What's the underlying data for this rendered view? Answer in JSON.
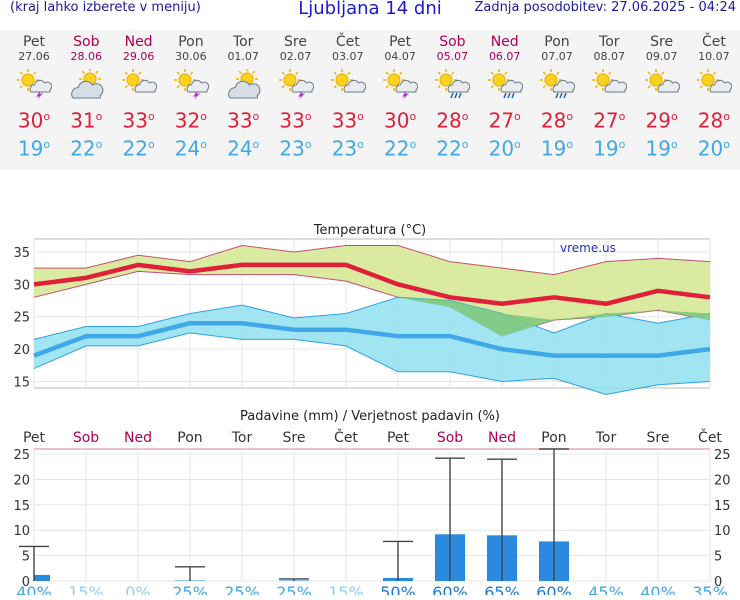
{
  "header": {
    "menu_hint": "(kraj lahko izberete v meniju)",
    "title": "Ljubljana 14 dni",
    "updated": "Zadnja posodobitev: 27.06.2025 - 04:24"
  },
  "days": [
    {
      "name": "Pet",
      "date": "27.06",
      "weekend": false,
      "icon": "sun-cloud-thunder-icon",
      "max": "30",
      "min": "19"
    },
    {
      "name": "Sob",
      "date": "28.06",
      "weekend": true,
      "icon": "cloud-sun-icon",
      "max": "31",
      "min": "22"
    },
    {
      "name": "Ned",
      "date": "29.06",
      "weekend": true,
      "icon": "sun-cloud-icon",
      "max": "33",
      "min": "22"
    },
    {
      "name": "Pon",
      "date": "30.06",
      "weekend": false,
      "icon": "sun-cloud-thunder-icon",
      "max": "32",
      "min": "24"
    },
    {
      "name": "Tor",
      "date": "01.07",
      "weekend": false,
      "icon": "cloud-sun-icon",
      "max": "33",
      "min": "24"
    },
    {
      "name": "Sre",
      "date": "02.07",
      "weekend": false,
      "icon": "sun-cloud-thunder-icon",
      "max": "33",
      "min": "23"
    },
    {
      "name": "Čet",
      "date": "03.07",
      "weekend": false,
      "icon": "sun-cloud-icon",
      "max": "33",
      "min": "23"
    },
    {
      "name": "Pet",
      "date": "04.07",
      "weekend": false,
      "icon": "sun-cloud-thunder-icon",
      "max": "30",
      "min": "22"
    },
    {
      "name": "Sob",
      "date": "05.07",
      "weekend": true,
      "icon": "sun-cloud-rain-icon",
      "max": "28",
      "min": "22"
    },
    {
      "name": "Ned",
      "date": "06.07",
      "weekend": true,
      "icon": "sun-cloud-rain-icon",
      "max": "27",
      "min": "20"
    },
    {
      "name": "Pon",
      "date": "07.07",
      "weekend": false,
      "icon": "sun-cloud-rain-icon",
      "max": "28",
      "min": "19"
    },
    {
      "name": "Tor",
      "date": "08.07",
      "weekend": false,
      "icon": "sun-cloud-icon",
      "max": "27",
      "min": "19"
    },
    {
      "name": "Sre",
      "date": "09.07",
      "weekend": false,
      "icon": "sun-cloud-icon",
      "max": "29",
      "min": "19"
    },
    {
      "name": "Čet",
      "date": "10.07",
      "weekend": false,
      "icon": "sun-cloud-icon",
      "max": "28",
      "min": "20"
    }
  ],
  "colors": {
    "max": "#e0203a",
    "min": "#40a8e8",
    "weekend": "#b00050",
    "max_band": "#d4e890",
    "min_band": "#90e0f0",
    "overlap": "#7cc878",
    "bar": "#2a8ae0"
  },
  "chart_data": [
    {
      "type": "line",
      "title": "Temperatura (°C)",
      "watermark": "vreme.us",
      "ylim": [
        14,
        37
      ],
      "yticks": [
        15,
        20,
        25,
        30,
        35
      ],
      "categories": [
        "Pet",
        "Sob",
        "Ned",
        "Pon",
        "Tor",
        "Sre",
        "Čet",
        "Pet",
        "Sob",
        "Ned",
        "Pon",
        "Tor",
        "Sre",
        "Čet"
      ],
      "series": [
        {
          "values": [
            30,
            31,
            33,
            32,
            33,
            33,
            33,
            30,
            28,
            27,
            28,
            27,
            29,
            28
          ]
        },
        {
          "values": [
            19,
            22,
            22,
            24,
            24,
            23,
            23,
            22,
            22,
            20,
            19,
            19,
            19,
            20
          ]
        }
      ],
      "max_band_upper": [
        32.5,
        32.5,
        34.5,
        33.5,
        36,
        35,
        36,
        36,
        33.5,
        32.5,
        31.5,
        33.5,
        34,
        33.5
      ],
      "max_band_lower": [
        28,
        30,
        32,
        31.5,
        31.5,
        31.5,
        30.5,
        28,
        26.5,
        22,
        24.5,
        25,
        26,
        24.5
      ],
      "min_band_upper": [
        21.5,
        23.5,
        23.5,
        25.5,
        26.8,
        24.8,
        25.5,
        28,
        27.5,
        25.5,
        22.5,
        25.5,
        24,
        25.5
      ],
      "min_band_lower": [
        17,
        20.5,
        20.5,
        22.5,
        21.5,
        21.5,
        20.5,
        16.5,
        16.5,
        15,
        15.5,
        13,
        14.5,
        15
      ]
    },
    {
      "type": "bar",
      "title": "Padavine (mm) / Verjetnost padavin (%)",
      "ylim": [
        0,
        26
      ],
      "yticks": [
        0,
        5,
        10,
        15,
        20,
        25
      ],
      "categories": [
        "Pet",
        "Sob",
        "Ned",
        "Pon",
        "Tor",
        "Sre",
        "Čet",
        "Pet",
        "Sob",
        "Ned",
        "Pon",
        "Tor",
        "Sre",
        "Čet"
      ],
      "values": [
        1.2,
        0,
        0,
        0.1,
        0,
        0.1,
        0,
        0.6,
        9.2,
        9,
        7.8,
        0,
        0,
        0
      ],
      "max": [
        6.8,
        0,
        0,
        2.8,
        0,
        0.4,
        0,
        7.8,
        24.2,
        24,
        26,
        0,
        0,
        0
      ],
      "probability": [
        "40%",
        "15%",
        "0%",
        "25%",
        "25%",
        "25%",
        "15%",
        "50%",
        "60%",
        "65%",
        "60%",
        "45%",
        "40%",
        "35%"
      ]
    }
  ]
}
